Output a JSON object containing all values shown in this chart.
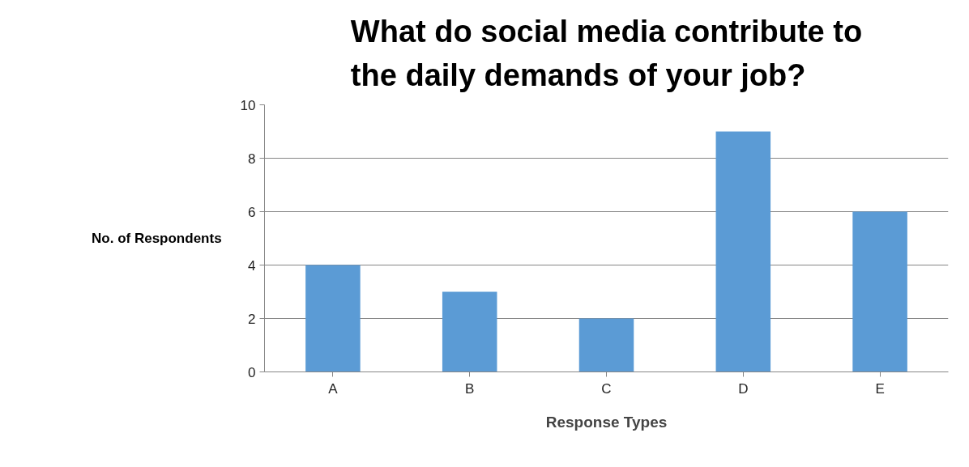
{
  "chart_data": {
    "type": "bar",
    "title": "What do social media contribute to the daily demands of your job?",
    "xlabel": "Response Types",
    "ylabel": "No. of Respondents",
    "categories": [
      "A",
      "B",
      "C",
      "D",
      "E"
    ],
    "values": [
      4,
      3,
      2,
      9,
      6
    ],
    "color": "#5b9bd5",
    "ylim": [
      0,
      10
    ],
    "yticks": [
      0,
      2,
      4,
      6,
      8,
      10
    ],
    "grid": "y"
  }
}
